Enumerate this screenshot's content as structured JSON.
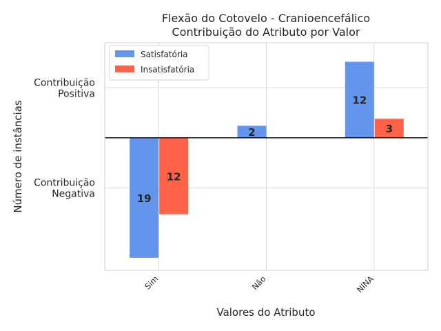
{
  "chart_data": {
    "type": "bar",
    "title": [
      "Flexão do Cotovelo - Cranioencefálico",
      "Contribuição do Atributo por Valor"
    ],
    "xlabel": "Valores do Atributo",
    "ylabel": "Número de instâncias",
    "categories": [
      "Sim",
      "Não",
      "NINA"
    ],
    "yticklabels": [
      {
        "value": 10,
        "lines": [
          "Contribuição",
          "Positiva"
        ]
      },
      {
        "value": -10,
        "lines": [
          "Contribuição",
          "Negativa"
        ]
      }
    ],
    "ylim": [
      -26.5,
      19
    ],
    "grid": true,
    "legend": "top-left",
    "series": [
      {
        "name": "Satisfatória",
        "color": "#6495ED",
        "values": [
          -24,
          2.4,
          15.2
        ],
        "labels": [
          "19",
          "2",
          "12"
        ]
      },
      {
        "name": "Insatisfatória",
        "color": "#FF6347",
        "values": [
          -15.3,
          0,
          3.8
        ],
        "labels": [
          "12",
          "",
          "3"
        ]
      }
    ]
  }
}
